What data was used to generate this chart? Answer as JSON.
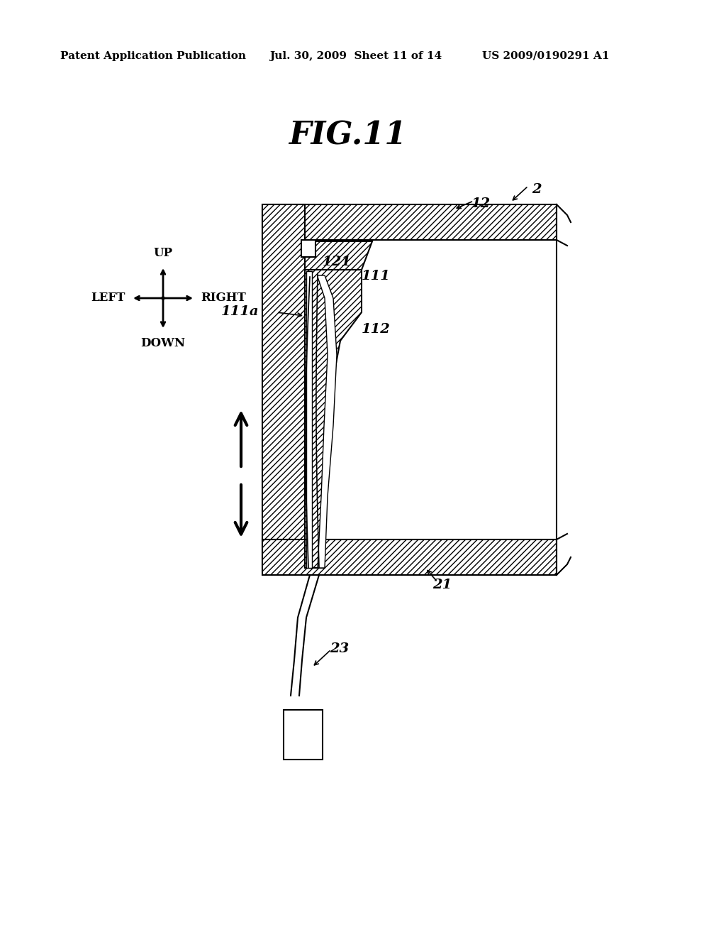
{
  "title": "FIG.11",
  "header_left": "Patent Application Publication",
  "header_mid": "Jul. 30, 2009  Sheet 11 of 14",
  "header_right": "US 2009/0190291 A1",
  "bg_color": "#ffffff",
  "hatch_color": "#000000",
  "line_color": "#000000",
  "label_2": "2",
  "label_12": "12",
  "label_21": "21",
  "label_23": "23",
  "label_111": "111",
  "label_112": "112",
  "label_121": "121",
  "label_111a": "111a"
}
